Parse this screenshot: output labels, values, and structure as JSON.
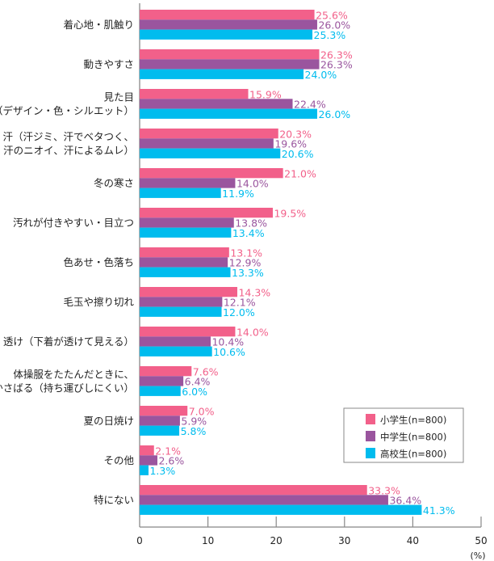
{
  "chart_data": {
    "type": "bar",
    "orientation": "horizontal",
    "categories": [
      [
        "着心地・肌触り"
      ],
      [
        "動きやすさ"
      ],
      [
        "見た目",
        "（デザイン・色・シルエット）"
      ],
      [
        "汗（汗ジミ、汗でベタつく、",
        "汗のニオイ、汗によるムレ）"
      ],
      [
        "冬の寒さ"
      ],
      [
        "汚れが付きやすい・目立つ"
      ],
      [
        "色あせ・色落ち"
      ],
      [
        "毛玉や擦り切れ"
      ],
      [
        "透け（下着が透けて見える）"
      ],
      [
        "体操服をたたんだときに、",
        "かさばる（持ち運びしにくい）"
      ],
      [
        "夏の日焼け"
      ],
      [
        "その他"
      ],
      [
        "特にない"
      ]
    ],
    "series": [
      {
        "name": "小学生(n=800)",
        "color": "#f2608a",
        "values": [
          25.6,
          26.3,
          15.9,
          20.3,
          21.0,
          19.5,
          13.1,
          14.3,
          14.0,
          7.6,
          7.0,
          2.1,
          33.3
        ]
      },
      {
        "name": "中学生(n=800)",
        "color": "#9a559e",
        "values": [
          26.0,
          26.3,
          22.4,
          19.6,
          14.0,
          13.8,
          12.9,
          12.1,
          10.4,
          6.4,
          5.9,
          2.6,
          36.4
        ]
      },
      {
        "name": "高校生(n=800)",
        "color": "#00bcee",
        "values": [
          25.3,
          24.0,
          26.0,
          20.6,
          11.9,
          13.4,
          13.3,
          12.0,
          10.6,
          6.0,
          5.8,
          1.3,
          41.3
        ]
      }
    ],
    "value_suffix": "%",
    "xlim": [
      0,
      50
    ],
    "xticks": [
      0,
      10,
      20,
      30,
      40,
      50
    ],
    "xunit": "(%)",
    "legend_position": "bottom-right",
    "grid": false
  }
}
